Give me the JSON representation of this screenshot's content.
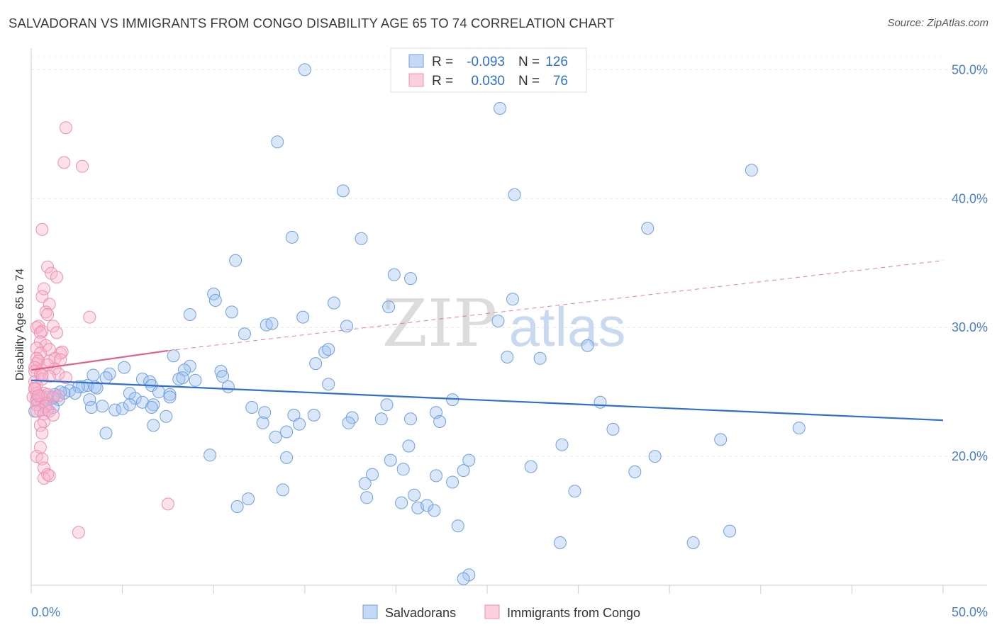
{
  "title": "SALVADORAN VS IMMIGRANTS FROM CONGO DISABILITY AGE 65 TO 74 CORRELATION CHART",
  "source": "Source: ZipAtlas.com",
  "watermark": {
    "zip": "ZIP",
    "atlas": "atlas"
  },
  "colors": {
    "blue": "#6fa0e0",
    "blue_line": "#2f6fd0",
    "pink": "#f08fb0",
    "pink_line": "#e0608c",
    "tick": "#4a7fc9"
  },
  "chart_data": {
    "type": "scatter",
    "ylabel": "Disability Age 65 to 74",
    "xlim": [
      0,
      50
    ],
    "ylim": [
      10,
      52
    ],
    "y_ticks": [
      {
        "value": 20,
        "label": "20.0%"
      },
      {
        "value": 30,
        "label": "30.0%"
      },
      {
        "value": 40,
        "label": "40.0%"
      },
      {
        "value": 50,
        "label": "50.0%"
      }
    ],
    "x_tick_labels": {
      "left": "0.0%",
      "right": "50.0%"
    },
    "grid": true,
    "legend": {
      "position": "top-center",
      "rows": [
        {
          "r_label": "R =",
          "r_value": "-0.093",
          "n_label": "N =",
          "n_value": "126"
        },
        {
          "r_label": "R =",
          "r_value": "0.030",
          "n_label": "N =",
          "n_value": "76"
        }
      ]
    },
    "series": [
      {
        "name": "Salvadorans",
        "color": "#6fa0e0",
        "trend": {
          "x0": 0,
          "y0": 25.9,
          "x1": 50,
          "y1": 22.8
        },
        "points": [
          [
            15,
            50
          ],
          [
            25.7,
            47
          ],
          [
            13.5,
            44.4
          ],
          [
            39.5,
            42.2
          ],
          [
            17.1,
            40.6
          ],
          [
            26.5,
            40.3
          ],
          [
            33.8,
            37.7
          ],
          [
            14.3,
            37
          ],
          [
            18.1,
            36.9
          ],
          [
            11.2,
            35.2
          ],
          [
            19.9,
            34.1
          ],
          [
            20.8,
            33.8
          ],
          [
            10,
            32.6
          ],
          [
            10.1,
            32.1
          ],
          [
            16.6,
            31.9
          ],
          [
            26.4,
            32.2
          ],
          [
            19.6,
            31.6
          ],
          [
            8.7,
            31
          ],
          [
            11,
            31.2
          ],
          [
            14.9,
            30.8
          ],
          [
            12.9,
            30.2
          ],
          [
            13.2,
            30.3
          ],
          [
            17.3,
            30.1
          ],
          [
            25.6,
            30.5
          ],
          [
            11.7,
            29.5
          ],
          [
            30.5,
            28.6
          ],
          [
            16.1,
            28.1
          ],
          [
            16.3,
            28.3
          ],
          [
            7.8,
            27.8
          ],
          [
            26.1,
            27.7
          ],
          [
            27.9,
            27.6
          ],
          [
            15.6,
            27.2
          ],
          [
            5.1,
            26.9
          ],
          [
            8.7,
            27
          ],
          [
            8.4,
            26.7
          ],
          [
            10.4,
            26.6
          ],
          [
            4.3,
            26.4
          ],
          [
            6.1,
            26
          ],
          [
            10.5,
            26.2
          ],
          [
            3.4,
            26.3
          ],
          [
            4.1,
            26.1
          ],
          [
            8.1,
            26
          ],
          [
            9,
            25.9
          ],
          [
            8.3,
            26.1
          ],
          [
            6.5,
            25.8
          ],
          [
            6.6,
            25.5
          ],
          [
            10.8,
            25.4
          ],
          [
            16.3,
            25.6
          ],
          [
            3.1,
            25.5
          ],
          [
            2.8,
            25.4
          ],
          [
            3.5,
            25.4
          ],
          [
            2.6,
            25.4
          ],
          [
            3.6,
            25.3
          ],
          [
            2.1,
            25.1
          ],
          [
            2.4,
            24.9
          ],
          [
            1.8,
            24.9
          ],
          [
            1.6,
            25
          ],
          [
            1.3,
            24.8
          ],
          [
            5.4,
            24.9
          ],
          [
            7,
            25
          ],
          [
            7.6,
            24.8
          ],
          [
            7.6,
            24.6
          ],
          [
            1.5,
            24.4
          ],
          [
            1.2,
            24.5
          ],
          [
            0.8,
            24.6
          ],
          [
            0.5,
            24.7
          ],
          [
            0.3,
            24.4
          ],
          [
            0.6,
            24.2
          ],
          [
            3.2,
            24.4
          ],
          [
            5.7,
            24.5
          ],
          [
            6.1,
            24.2
          ],
          [
            6.7,
            24
          ],
          [
            31.2,
            24.2
          ],
          [
            23.1,
            24.4
          ],
          [
            0.4,
            24.3
          ],
          [
            1.2,
            23.8
          ],
          [
            0.9,
            23.6
          ],
          [
            0.2,
            23.5
          ],
          [
            3.3,
            23.8
          ],
          [
            3.9,
            23.9
          ],
          [
            4.6,
            23.6
          ],
          [
            5,
            23.7
          ],
          [
            5.4,
            24
          ],
          [
            6.6,
            23.8
          ],
          [
            12.1,
            23.8
          ],
          [
            12.8,
            23.4
          ],
          [
            19.5,
            24
          ],
          [
            22.2,
            23.4
          ],
          [
            7.4,
            23.1
          ],
          [
            14.4,
            23.2
          ],
          [
            15.5,
            23.2
          ],
          [
            17.6,
            23
          ],
          [
            19.2,
            22.9
          ],
          [
            20.8,
            22.9
          ],
          [
            12.7,
            22.6
          ],
          [
            14.7,
            22.5
          ],
          [
            17.4,
            22.6
          ],
          [
            22.4,
            22.7
          ],
          [
            4.1,
            21.8
          ],
          [
            6.7,
            22.4
          ],
          [
            13.4,
            21.5
          ],
          [
            14,
            21.9
          ],
          [
            31.9,
            22.1
          ],
          [
            42.1,
            22.2
          ],
          [
            20.7,
            20.8
          ],
          [
            29.1,
            20.9
          ],
          [
            37.8,
            21.3
          ],
          [
            9.8,
            20.1
          ],
          [
            14,
            19.9
          ],
          [
            19.7,
            19.7
          ],
          [
            24,
            19.7
          ],
          [
            34.2,
            20
          ],
          [
            20.4,
            19
          ],
          [
            23.7,
            18.9
          ],
          [
            27.4,
            19.2
          ],
          [
            33.1,
            18.8
          ],
          [
            18.3,
            17.9
          ],
          [
            18.7,
            18.6
          ],
          [
            22.2,
            18.5
          ],
          [
            23.1,
            18
          ],
          [
            13.8,
            17.4
          ],
          [
            21,
            17
          ],
          [
            29.8,
            17.3
          ],
          [
            11.9,
            16.7
          ],
          [
            11.3,
            16.1
          ],
          [
            18.4,
            16.8
          ],
          [
            20.3,
            16.4
          ],
          [
            21.2,
            16
          ],
          [
            21.7,
            16.2
          ],
          [
            22.1,
            15.8
          ],
          [
            23.4,
            14.6
          ],
          [
            29,
            13.3
          ],
          [
            36.3,
            13.3
          ],
          [
            38.3,
            14.2
          ],
          [
            24,
            10.8
          ],
          [
            23.7,
            10.5
          ]
        ]
      },
      {
        "name": "Immigrants from Congo",
        "color": "#f08fb0",
        "trend": {
          "x0": 0,
          "y0": 26.7,
          "x1": 7.5,
          "y1": 28.2,
          "dash_x1": 50,
          "dash_y1": 35.2
        },
        "points": [
          [
            1.9,
            45.5
          ],
          [
            1.8,
            42.8
          ],
          [
            2.8,
            42.5
          ],
          [
            0.6,
            37.6
          ],
          [
            0.9,
            34.7
          ],
          [
            1.1,
            34.2
          ],
          [
            1.4,
            33.9
          ],
          [
            0.7,
            33
          ],
          [
            0.6,
            32.4
          ],
          [
            1,
            31.8
          ],
          [
            0.8,
            31.2
          ],
          [
            0.9,
            31
          ],
          [
            3.2,
            30.8
          ],
          [
            0.4,
            30.1
          ],
          [
            0.3,
            30
          ],
          [
            1.2,
            30.1
          ],
          [
            0.6,
            29.7
          ],
          [
            0.5,
            29.6
          ],
          [
            1.4,
            29.6
          ],
          [
            0.5,
            28.9
          ],
          [
            0.8,
            28.6
          ],
          [
            0.3,
            28.4
          ],
          [
            1,
            28.3
          ],
          [
            0.5,
            28
          ],
          [
            1.6,
            28
          ],
          [
            1.7,
            28.1
          ],
          [
            0.3,
            27.6
          ],
          [
            0.3,
            27.2
          ],
          [
            0.4,
            27.4
          ],
          [
            1,
            27.4
          ],
          [
            1.3,
            27.6
          ],
          [
            1.6,
            27.5
          ],
          [
            0.2,
            26.9
          ],
          [
            0.2,
            26.6
          ],
          [
            0.6,
            26.7
          ],
          [
            1.3,
            26.8
          ],
          [
            1.5,
            26.4
          ],
          [
            0.5,
            26.4
          ],
          [
            0.6,
            26
          ],
          [
            1,
            26.2
          ],
          [
            1.9,
            26.1
          ],
          [
            0.2,
            25.8
          ],
          [
            0.3,
            25.5
          ],
          [
            0.2,
            25.2
          ],
          [
            0.3,
            24.9
          ],
          [
            0.1,
            24.6
          ],
          [
            0.3,
            24.3
          ],
          [
            0.3,
            24
          ],
          [
            0.6,
            24.6
          ],
          [
            0.7,
            24.9
          ],
          [
            0.9,
            24.8
          ],
          [
            1.2,
            24.6
          ],
          [
            1.5,
            24.7
          ],
          [
            0.8,
            24.1
          ],
          [
            0.8,
            23.9
          ],
          [
            0.5,
            23.6
          ],
          [
            0.3,
            23.5
          ],
          [
            0.7,
            23.3
          ],
          [
            1,
            23.5
          ],
          [
            1.2,
            23.2
          ],
          [
            0.7,
            22.7
          ],
          [
            0.5,
            22.4
          ],
          [
            0.6,
            21.8
          ],
          [
            0.5,
            20.7
          ],
          [
            0.3,
            20
          ],
          [
            0.6,
            19.8
          ],
          [
            0.7,
            19.1
          ],
          [
            0.9,
            18.6
          ],
          [
            0.7,
            18.3
          ],
          [
            1,
            18.5
          ],
          [
            7.5,
            16.3
          ],
          [
            2.6,
            14.1
          ],
          [
            0.2,
            25.3
          ],
          [
            0.4,
            24.7
          ],
          [
            0.6,
            26.3
          ],
          [
            0.9,
            27.1
          ]
        ]
      }
    ]
  }
}
